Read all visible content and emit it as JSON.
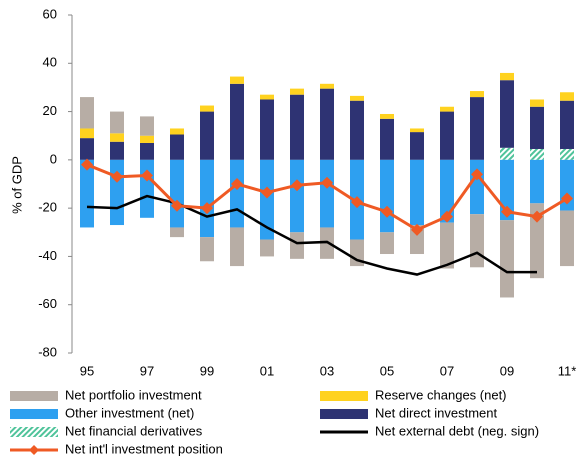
{
  "chart_data": {
    "type": "bar",
    "y_label": "% of GDP",
    "categories": [
      "95",
      null,
      "97",
      null,
      "99",
      null,
      "01",
      null,
      "03",
      null,
      "05",
      null,
      "07",
      null,
      "09",
      null,
      "11*"
    ],
    "ylim": [
      -80,
      60
    ],
    "yticks": [
      -80,
      -60,
      -40,
      -20,
      0,
      20,
      40,
      60
    ],
    "series": [
      {
        "name": "Net financial derivatives",
        "type": "bar",
        "color": "#4fc39a",
        "pattern": "hatch",
        "values": [
          0,
          0,
          0,
          0,
          0,
          0,
          0,
          0,
          0,
          0,
          0,
          0,
          0,
          0,
          5,
          4.5,
          4.5
        ]
      },
      {
        "name": "Net direct investment",
        "type": "bar",
        "color": "#2e3373",
        "values": [
          9,
          7.5,
          7,
          10.5,
          20,
          31.5,
          25,
          27,
          29.5,
          24.5,
          17,
          11.5,
          20,
          26,
          28,
          17.5,
          20
        ]
      },
      {
        "name": "Other investment (net)",
        "type": "bar",
        "color": "#2ea0f0",
        "values": [
          -28,
          -27,
          -24,
          -28,
          -32,
          -28,
          -33,
          -30,
          -28,
          -33,
          -30,
          -27,
          -26,
          -22.5,
          -25,
          -18,
          -21
        ]
      },
      {
        "name": "Reserve changes (net)",
        "type": "bar",
        "color": "#ffd21f",
        "values": [
          4,
          3.5,
          3,
          2.5,
          2.5,
          3,
          2,
          2.5,
          2,
          2,
          2,
          1.5,
          2,
          2.5,
          3,
          3,
          3.5
        ]
      },
      {
        "name": "Net portfolio investment",
        "type": "bar",
        "color": "#b7ada5",
        "values": [
          13,
          9,
          8,
          -4,
          -10,
          -16,
          -7,
          -11,
          -13,
          -11,
          -9,
          -12,
          -19,
          -22,
          -32,
          -31,
          -23
        ]
      },
      {
        "name": "Net external debt (neg. sign)",
        "type": "line",
        "color": "#000000",
        "values": [
          -19.5,
          -20,
          -15,
          -18,
          -23.5,
          -20.5,
          -28,
          -34.5,
          -34,
          -41.5,
          -45,
          -47.5,
          -43.5,
          -38.5,
          -46.5,
          -46.5,
          null
        ]
      },
      {
        "name": "Net int'l investment position",
        "type": "line",
        "color": "#ef5a24",
        "marker": "diamond",
        "values": [
          -2,
          -7,
          -6.5,
          -19,
          -20,
          -10,
          -13.5,
          -10.5,
          -9.5,
          -17.5,
          -21.5,
          -29,
          -23.5,
          -6,
          -21.5,
          -23.5,
          -16
        ]
      }
    ]
  }
}
